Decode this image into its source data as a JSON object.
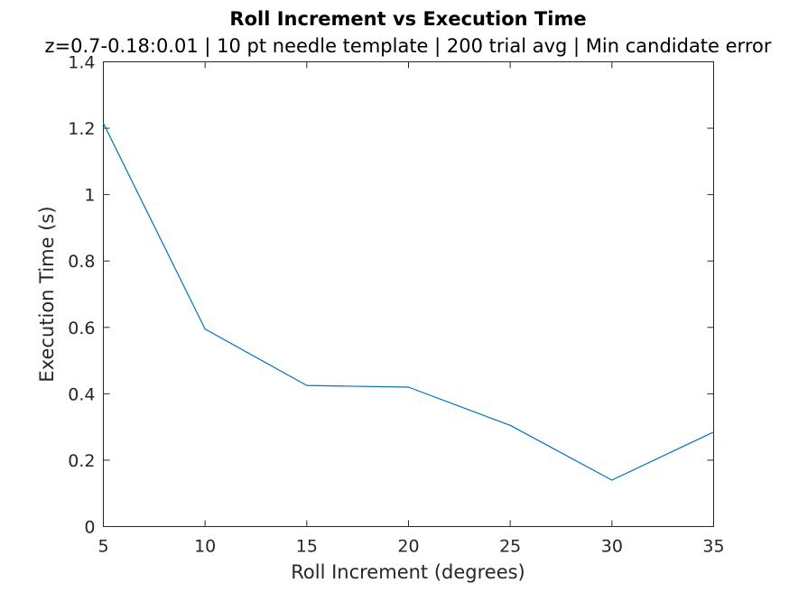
{
  "chart_data": {
    "type": "line",
    "title": "Roll Increment vs Execution Time",
    "subtitle": "z=0.7-0.18:0.01 | 10 pt needle template | 200 trial avg | Min candidate error",
    "xlabel": "Roll Increment (degrees)",
    "ylabel": "Execution Time (s)",
    "xlim": [
      5,
      35
    ],
    "ylim": [
      0,
      1.4
    ],
    "xticks": [
      5,
      10,
      15,
      20,
      25,
      30,
      35
    ],
    "xtick_labels": [
      "5",
      "10",
      "15",
      "20",
      "25",
      "30",
      "35"
    ],
    "yticks": [
      0,
      0.2,
      0.4,
      0.6,
      0.8,
      1.0,
      1.2,
      1.4
    ],
    "ytick_labels": [
      "0",
      "0.2",
      "0.4",
      "0.6",
      "0.8",
      "1",
      "1.2",
      "1.4"
    ],
    "grid": false,
    "series": [
      {
        "name": "Execution Time",
        "color": "#0072bd",
        "x": [
          5,
          10,
          15,
          20,
          25,
          30,
          35
        ],
        "y": [
          1.215,
          0.595,
          0.425,
          0.42,
          0.305,
          0.14,
          0.285
        ]
      }
    ]
  }
}
